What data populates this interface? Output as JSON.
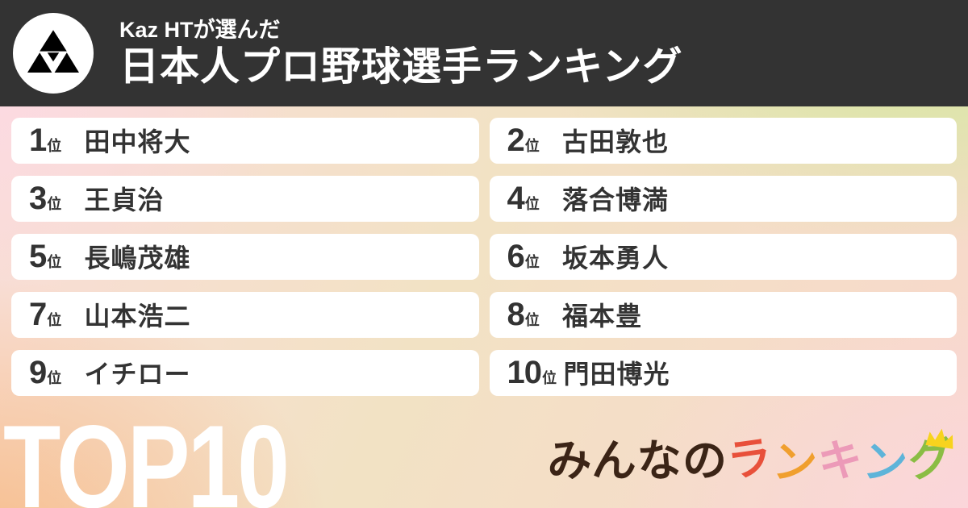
{
  "header": {
    "subtitle": "Kaz HTが選んだ",
    "title": "日本人プロ野球選手ランキング",
    "bg_color": "#333333",
    "logo_icon": "triangles-avatar-icon"
  },
  "ranking": {
    "rank_suffix": "位",
    "text_color": "#333333",
    "items": [
      {
        "rank": "1",
        "name": "田中将大"
      },
      {
        "rank": "2",
        "name": "古田敦也"
      },
      {
        "rank": "3",
        "name": "王貞治"
      },
      {
        "rank": "4",
        "name": "落合博満"
      },
      {
        "rank": "5",
        "name": "長嶋茂雄"
      },
      {
        "rank": "6",
        "name": "坂本勇人"
      },
      {
        "rank": "7",
        "name": "山本浩二"
      },
      {
        "rank": "8",
        "name": "福本豊"
      },
      {
        "rank": "9",
        "name": "イチロー"
      },
      {
        "rank": "10",
        "name": "門田博光"
      }
    ]
  },
  "footer": {
    "top_label": "TOP10",
    "brand": {
      "text": "みんなのランキング",
      "letters": [
        {
          "char": "み",
          "color": "#3b2416"
        },
        {
          "char": "ん",
          "color": "#3b2416"
        },
        {
          "char": "な",
          "color": "#3b2416"
        },
        {
          "char": "の",
          "color": "#3b2416"
        },
        {
          "char": "ラ",
          "color": "#e8503a"
        },
        {
          "char": "ン",
          "color": "#f09f2e"
        },
        {
          "char": "キ",
          "color": "#ec9ab8"
        },
        {
          "char": "ン",
          "color": "#5eb4d9"
        },
        {
          "char": "グ",
          "color": "#8abd44"
        }
      ],
      "crown_color": "#f7d31e"
    }
  },
  "background": {
    "top_left": "#fcdae2",
    "top_right": "#cfeb98",
    "bottom_left": "#f7bd8c",
    "bottom_right": "#fbd6dc"
  }
}
